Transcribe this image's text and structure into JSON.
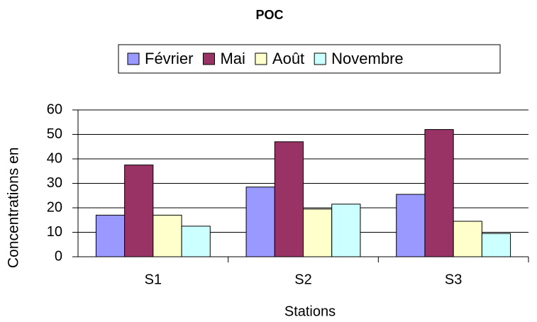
{
  "chart_data": {
    "type": "bar",
    "title": "POC",
    "x_label": "Stations",
    "y_label": "Concentrations en",
    "categories": [
      "S1",
      "S2",
      "S3"
    ],
    "series": [
      {
        "name": "Février",
        "color": "#9999ff",
        "values": [
          17,
          28.5,
          25.5
        ]
      },
      {
        "name": "Mai",
        "color": "#993366",
        "values": [
          37.5,
          47,
          52
        ]
      },
      {
        "name": "Août",
        "color": "#ffffcc",
        "values": [
          17,
          19.5,
          14.5
        ]
      },
      {
        "name": "Novembre",
        "color": "#ccffff",
        "values": [
          12.5,
          21.5,
          9.5
        ]
      }
    ],
    "ylim": [
      0,
      60
    ],
    "yticks": [
      0,
      10,
      20,
      30,
      40,
      50,
      60
    ],
    "grid": true,
    "legend": "top"
  }
}
